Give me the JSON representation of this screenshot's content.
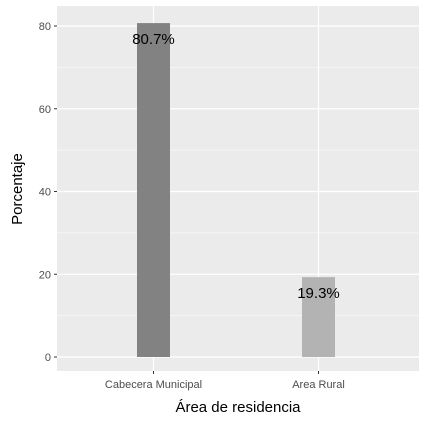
{
  "chart_data": {
    "type": "bar",
    "categories": [
      "Cabecera Municipal",
      "Area Rural"
    ],
    "values": [
      80.7,
      19.3
    ],
    "data_labels": [
      "80.7%",
      "19.3%"
    ],
    "xlabel": "Área de residencia",
    "ylabel": "Porcentaje",
    "ylim": [
      0,
      84
    ],
    "yticks": [
      0,
      20,
      40,
      60,
      80
    ],
    "grid": true,
    "legend": "none",
    "colors": {
      "panel_background": "#ebebeb",
      "grid_major": "#ffffff",
      "bars": [
        "#828282",
        "#b3b3b3"
      ]
    }
  }
}
